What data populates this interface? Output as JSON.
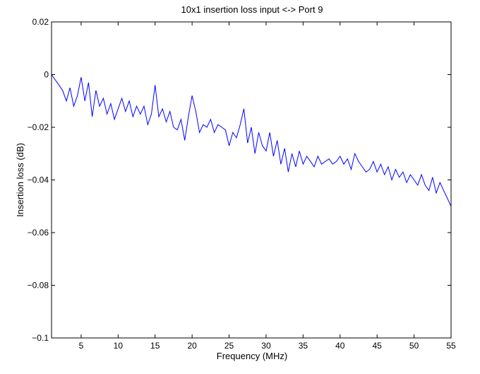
{
  "chart_data": {
    "type": "line",
    "title": "10x1 insertion loss input <-> Port 9",
    "xlabel": "Frequency (MHz)",
    "ylabel": "Insertion loss (dB)",
    "xlim": [
      1,
      55
    ],
    "ylim": [
      -0.1,
      0.02
    ],
    "xticks": [
      5,
      10,
      15,
      20,
      25,
      30,
      35,
      40,
      45,
      50,
      55
    ],
    "xtick_labels": [
      "5",
      "10",
      "15",
      "20",
      "25",
      "30",
      "35",
      "40",
      "45",
      "50",
      "55"
    ],
    "yticks": [
      -0.1,
      -0.08,
      -0.06,
      -0.04,
      -0.02,
      0,
      0.02
    ],
    "ytick_labels": [
      "−0.1",
      "−0.08",
      "−0.06",
      "−0.04",
      "−0.02",
      "0",
      "0.02"
    ],
    "grid": false,
    "series": [
      {
        "color": "#0000ff",
        "x": [
          1.0,
          1.5,
          2.0,
          2.5,
          3.0,
          3.5,
          4.0,
          4.5,
          5.0,
          5.5,
          6.0,
          6.5,
          7.0,
          7.5,
          8.0,
          8.5,
          9.0,
          9.5,
          10.0,
          10.5,
          11.0,
          11.5,
          12.0,
          12.5,
          13.0,
          13.5,
          14.0,
          14.5,
          15.0,
          15.5,
          16.0,
          16.5,
          17.0,
          17.5,
          18.0,
          18.5,
          19.0,
          19.5,
          20.0,
          20.5,
          21.0,
          21.5,
          22.0,
          22.5,
          23.0,
          23.5,
          24.0,
          24.5,
          25.0,
          25.5,
          26.0,
          26.5,
          27.0,
          27.5,
          28.0,
          28.5,
          29.0,
          29.5,
          30.0,
          30.5,
          31.0,
          31.5,
          32.0,
          32.5,
          33.0,
          33.5,
          34.0,
          34.5,
          35.0,
          35.5,
          36.0,
          36.5,
          37.0,
          37.5,
          38.0,
          38.5,
          39.0,
          39.5,
          40.0,
          40.5,
          41.0,
          41.5,
          42.0,
          42.5,
          43.0,
          43.5,
          44.0,
          44.5,
          45.0,
          45.5,
          46.0,
          46.5,
          47.0,
          47.5,
          48.0,
          48.5,
          49.0,
          49.5,
          50.0,
          50.5,
          51.0,
          51.5,
          52.0,
          52.5,
          53.0,
          53.5,
          54.0,
          54.5,
          55.0
        ],
        "y": [
          0.0,
          -0.002,
          -0.004,
          -0.006,
          -0.01,
          -0.005,
          -0.012,
          -0.008,
          -0.001,
          -0.01,
          -0.003,
          -0.016,
          -0.006,
          -0.012,
          -0.009,
          -0.015,
          -0.011,
          -0.017,
          -0.013,
          -0.009,
          -0.014,
          -0.01,
          -0.016,
          -0.012,
          -0.015,
          -0.012,
          -0.019,
          -0.015,
          -0.004,
          -0.016,
          -0.013,
          -0.018,
          -0.014,
          -0.02,
          -0.021,
          -0.017,
          -0.025,
          -0.016,
          -0.008,
          -0.014,
          -0.022,
          -0.019,
          -0.02,
          -0.017,
          -0.022,
          -0.019,
          -0.02,
          -0.021,
          -0.027,
          -0.022,
          -0.024,
          -0.019,
          -0.013,
          -0.026,
          -0.02,
          -0.03,
          -0.022,
          -0.027,
          -0.029,
          -0.022,
          -0.031,
          -0.025,
          -0.034,
          -0.028,
          -0.037,
          -0.03,
          -0.035,
          -0.029,
          -0.034,
          -0.031,
          -0.033,
          -0.035,
          -0.031,
          -0.034,
          -0.033,
          -0.032,
          -0.034,
          -0.033,
          -0.031,
          -0.034,
          -0.032,
          -0.036,
          -0.03,
          -0.033,
          -0.035,
          -0.037,
          -0.036,
          -0.033,
          -0.037,
          -0.034,
          -0.038,
          -0.035,
          -0.04,
          -0.036,
          -0.039,
          -0.037,
          -0.041,
          -0.038,
          -0.04,
          -0.042,
          -0.038,
          -0.042,
          -0.044,
          -0.039,
          -0.045,
          -0.041,
          -0.044,
          -0.047,
          -0.05
        ]
      }
    ]
  }
}
